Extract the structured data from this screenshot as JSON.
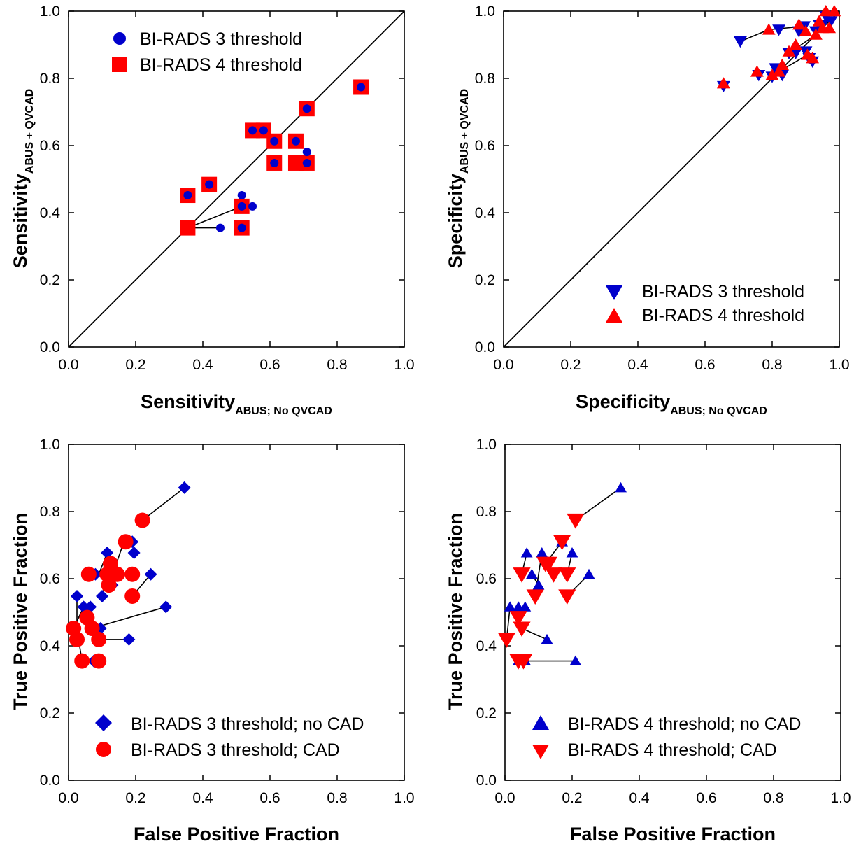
{
  "colors": {
    "blue": "#0000cc",
    "red": "#ff0000",
    "axis": "#000000"
  },
  "chart_data": [
    {
      "id": "sens",
      "type": "scatter",
      "xlabel_main": "Sensitivity",
      "xlabel_sub": "ABUS; No QVCAD",
      "ylabel_main": "Sensitivity",
      "ylabel_sub": "ABUS + QVCAD",
      "xlim": [
        0,
        1
      ],
      "ylim": [
        0,
        1
      ],
      "xticks": [
        "0.0",
        "0.2",
        "0.4",
        "0.6",
        "0.8",
        "1.0"
      ],
      "yticks": [
        "0.0",
        "0.2",
        "0.4",
        "0.6",
        "0.8",
        "1.0"
      ],
      "diagonal": true,
      "legend_position": "top-left",
      "series": [
        {
          "name": "BI-RADS 4 threshold",
          "marker": "square",
          "color": "red",
          "points": [
            [
              0.355,
              0.355
            ],
            [
              0.355,
              0.452
            ],
            [
              0.419,
              0.484
            ],
            [
              0.516,
              0.419
            ],
            [
              0.516,
              0.355
            ],
            [
              0.548,
              0.645
            ],
            [
              0.581,
              0.645
            ],
            [
              0.613,
              0.613
            ],
            [
              0.613,
              0.548
            ],
            [
              0.677,
              0.613
            ],
            [
              0.677,
              0.548
            ],
            [
              0.71,
              0.548
            ],
            [
              0.71,
              0.71
            ],
            [
              0.871,
              0.774
            ]
          ]
        },
        {
          "name": "BI-RADS 3 threshold",
          "marker": "circle",
          "color": "blue",
          "points": [
            [
              0.452,
              0.355
            ],
            [
              0.516,
              0.452
            ],
            [
              0.548,
              0.419
            ],
            [
              0.516,
              0.419
            ],
            [
              0.516,
              0.355
            ],
            [
              0.355,
              0.452
            ],
            [
              0.419,
              0.484
            ],
            [
              0.548,
              0.645
            ],
            [
              0.581,
              0.645
            ],
            [
              0.613,
              0.613
            ],
            [
              0.613,
              0.548
            ],
            [
              0.677,
              0.613
            ],
            [
              0.71,
              0.581
            ],
            [
              0.71,
              0.548
            ],
            [
              0.71,
              0.71
            ],
            [
              0.871,
              0.774
            ]
          ]
        }
      ],
      "connectors": [
        [
          [
            0.355,
            0.355
          ],
          [
            0.516,
            0.419
          ]
        ],
        [
          [
            0.355,
            0.355
          ],
          [
            0.452,
            0.355
          ]
        ]
      ]
    },
    {
      "id": "spec",
      "type": "scatter",
      "xlabel_main": "Specificity",
      "xlabel_sub": "ABUS; No QVCAD",
      "ylabel_main": "Specificity",
      "ylabel_sub": "ABUS + QVCAD",
      "xlim": [
        0,
        1
      ],
      "ylim": [
        0,
        1
      ],
      "xticks": [
        "0.0",
        "0.2",
        "0.4",
        "0.6",
        "0.8",
        "1.0"
      ],
      "yticks": [
        "0.0",
        "0.2",
        "0.4",
        "0.6",
        "0.8",
        "1.0"
      ],
      "diagonal": true,
      "legend_position": "bottom-right",
      "series": [
        {
          "name": "BI-RADS 3 threshold",
          "marker": "triangle-down",
          "color": "blue",
          "points": [
            [
              0.655,
              0.777
            ],
            [
              0.705,
              0.91
            ],
            [
              0.76,
              0.81
            ],
            [
              0.8,
              0.805
            ],
            [
              0.81,
              0.83
            ],
            [
              0.83,
              0.81
            ],
            [
              0.82,
              0.945
            ],
            [
              0.85,
              0.875
            ],
            [
              0.87,
              0.875
            ],
            [
              0.88,
              0.94
            ],
            [
              0.895,
              0.955
            ],
            [
              0.9,
              0.88
            ],
            [
              0.91,
              0.86
            ],
            [
              0.92,
              0.85
            ],
            [
              0.93,
              0.94
            ],
            [
              0.94,
              0.96
            ],
            [
              0.96,
              0.985
            ],
            [
              0.975,
              0.97
            ],
            [
              0.95,
              0.96
            ]
          ]
        },
        {
          "name": "BI-RADS 4 threshold",
          "marker": "triangle-up",
          "color": "red",
          "points": [
            [
              0.655,
              0.785
            ],
            [
              0.755,
              0.82
            ],
            [
              0.79,
              0.945
            ],
            [
              0.8,
              0.81
            ],
            [
              0.82,
              0.82
            ],
            [
              0.83,
              0.84
            ],
            [
              0.85,
              0.88
            ],
            [
              0.87,
              0.9
            ],
            [
              0.88,
              0.96
            ],
            [
              0.9,
              0.94
            ],
            [
              0.905,
              0.87
            ],
            [
              0.92,
              0.86
            ],
            [
              0.93,
              0.93
            ],
            [
              0.94,
              0.97
            ],
            [
              0.95,
              0.95
            ],
            [
              0.96,
              1.0
            ],
            [
              0.985,
              1.0
            ],
            [
              0.97,
              0.95
            ]
          ]
        }
      ],
      "connectors": [
        [
          [
            0.705,
            0.91
          ],
          [
            0.79,
            0.945
          ]
        ],
        [
          [
            0.79,
            0.945
          ],
          [
            0.895,
            0.955
          ]
        ],
        [
          [
            0.82,
            0.82
          ],
          [
            0.905,
            0.87
          ]
        ],
        [
          [
            0.85,
            0.875
          ],
          [
            0.93,
            0.93
          ]
        ]
      ]
    },
    {
      "id": "roc3",
      "type": "scatter",
      "xlabel_main": "False Positive Fraction",
      "ylabel_main": "True Positive Fraction",
      "xlim": [
        0,
        1
      ],
      "ylim": [
        0,
        1
      ],
      "xticks": [
        "0.0",
        "0.2",
        "0.4",
        "0.6",
        "0.8",
        "1.0"
      ],
      "yticks": [
        "0.0",
        "0.2",
        "0.4",
        "0.6",
        "0.8",
        "1.0"
      ],
      "diagonal": false,
      "legend_position": "bottom-right",
      "series": [
        {
          "name": "BI-RADS 3 threshold; no CAD",
          "marker": "diamond",
          "color": "blue",
          "points": [
            [
              0.345,
              0.871
            ],
            [
              0.29,
              0.516
            ],
            [
              0.245,
              0.613
            ],
            [
              0.19,
              0.71
            ],
            [
              0.195,
              0.677
            ],
            [
              0.165,
              0.71
            ],
            [
              0.115,
              0.677
            ],
            [
              0.13,
              0.581
            ],
            [
              0.08,
              0.613
            ],
            [
              0.1,
              0.548
            ],
            [
              0.065,
              0.516
            ],
            [
              0.045,
              0.516
            ],
            [
              0.025,
              0.548
            ],
            [
              0.03,
              0.419
            ],
            [
              0.095,
              0.452
            ],
            [
              0.18,
              0.419
            ],
            [
              0.075,
              0.355
            ]
          ]
        },
        {
          "name": "BI-RADS 3 threshold; CAD",
          "marker": "circle",
          "color": "red",
          "points": [
            [
              0.22,
              0.774
            ],
            [
              0.17,
              0.71
            ],
            [
              0.19,
              0.613
            ],
            [
              0.125,
              0.645
            ],
            [
              0.115,
              0.613
            ],
            [
              0.145,
              0.613
            ],
            [
              0.12,
              0.581
            ],
            [
              0.06,
              0.613
            ],
            [
              0.19,
              0.548
            ],
            [
              0.015,
              0.452
            ],
            [
              0.025,
              0.419
            ],
            [
              0.055,
              0.484
            ],
            [
              0.07,
              0.452
            ],
            [
              0.09,
              0.419
            ],
            [
              0.04,
              0.355
            ],
            [
              0.09,
              0.355
            ]
          ]
        }
      ],
      "connectors": [
        [
          [
            0.345,
            0.871
          ],
          [
            0.22,
            0.774
          ]
        ],
        [
          [
            0.29,
            0.516
          ],
          [
            0.07,
            0.452
          ]
        ],
        [
          [
            0.245,
            0.613
          ],
          [
            0.19,
            0.548
          ]
        ],
        [
          [
            0.19,
            0.71
          ],
          [
            0.17,
            0.71
          ]
        ],
        [
          [
            0.165,
            0.71
          ],
          [
            0.12,
            0.581
          ]
        ],
        [
          [
            0.115,
            0.677
          ],
          [
            0.09,
            0.613
          ]
        ],
        [
          [
            0.13,
            0.581
          ],
          [
            0.125,
            0.645
          ]
        ],
        [
          [
            0.08,
            0.613
          ],
          [
            0.06,
            0.613
          ]
        ],
        [
          [
            0.1,
            0.548
          ],
          [
            0.115,
            0.613
          ]
        ],
        [
          [
            0.025,
            0.548
          ],
          [
            0.025,
            0.419
          ]
        ],
        [
          [
            0.045,
            0.516
          ],
          [
            0.015,
            0.452
          ]
        ],
        [
          [
            0.18,
            0.419
          ],
          [
            0.09,
            0.419
          ]
        ],
        [
          [
            0.095,
            0.452
          ],
          [
            0.055,
            0.484
          ]
        ],
        [
          [
            0.075,
            0.355
          ],
          [
            0.09,
            0.355
          ]
        ],
        [
          [
            0.03,
            0.419
          ],
          [
            0.04,
            0.355
          ]
        ]
      ]
    },
    {
      "id": "roc4",
      "type": "scatter",
      "xlabel_main": "False Positive Fraction",
      "ylabel_main": "True Positive Fraction",
      "xlim": [
        0,
        1
      ],
      "ylim": [
        0,
        1
      ],
      "xticks": [
        "0.0",
        "0.2",
        "0.4",
        "0.6",
        "0.8",
        "1.0"
      ],
      "yticks": [
        "0.0",
        "0.2",
        "0.4",
        "0.6",
        "0.8",
        "1.0"
      ],
      "diagonal": false,
      "legend_position": "bottom-right",
      "series": [
        {
          "name": "BI-RADS 4 threshold; no CAD",
          "marker": "triangle-up",
          "color": "blue",
          "points": [
            [
              0.345,
              0.871
            ],
            [
              0.25,
              0.613
            ],
            [
              0.2,
              0.677
            ],
            [
              0.17,
              0.71
            ],
            [
              0.11,
              0.677
            ],
            [
              0.065,
              0.677
            ],
            [
              0.1,
              0.581
            ],
            [
              0.08,
              0.613
            ],
            [
              0.06,
              0.516
            ],
            [
              0.04,
              0.516
            ],
            [
              0.015,
              0.516
            ],
            [
              0.125,
              0.419
            ],
            [
              0.04,
              0.355
            ],
            [
              0.06,
              0.355
            ],
            [
              0.21,
              0.355
            ]
          ]
        },
        {
          "name": "BI-RADS 4 threshold; CAD",
          "marker": "triangle-down",
          "color": "red",
          "points": [
            [
              0.21,
              0.774
            ],
            [
              0.17,
              0.71
            ],
            [
              0.12,
              0.645
            ],
            [
              0.13,
              0.645
            ],
            [
              0.145,
              0.613
            ],
            [
              0.185,
              0.613
            ],
            [
              0.185,
              0.548
            ],
            [
              0.05,
              0.613
            ],
            [
              0.09,
              0.548
            ],
            [
              0.005,
              0.419
            ],
            [
              0.04,
              0.484
            ],
            [
              0.05,
              0.452
            ],
            [
              0.04,
              0.355
            ],
            [
              0.055,
              0.355
            ]
          ]
        }
      ],
      "connectors": [
        [
          [
            0.345,
            0.871
          ],
          [
            0.21,
            0.774
          ]
        ],
        [
          [
            0.25,
            0.613
          ],
          [
            0.185,
            0.548
          ]
        ],
        [
          [
            0.2,
            0.677
          ],
          [
            0.185,
            0.613
          ]
        ],
        [
          [
            0.17,
            0.71
          ],
          [
            0.12,
            0.645
          ]
        ],
        [
          [
            0.11,
            0.677
          ],
          [
            0.09,
            0.548
          ]
        ],
        [
          [
            0.065,
            0.677
          ],
          [
            0.05,
            0.613
          ]
        ],
        [
          [
            0.1,
            0.581
          ],
          [
            0.08,
            0.613
          ]
        ],
        [
          [
            0.06,
            0.516
          ],
          [
            0.04,
            0.484
          ]
        ],
        [
          [
            0.015,
            0.516
          ],
          [
            0.005,
            0.419
          ]
        ],
        [
          [
            0.125,
            0.419
          ],
          [
            0.05,
            0.452
          ]
        ],
        [
          [
            0.21,
            0.355
          ],
          [
            0.055,
            0.355
          ]
        ],
        [
          [
            0.04,
            0.355
          ],
          [
            0.06,
            0.355
          ]
        ]
      ]
    }
  ]
}
